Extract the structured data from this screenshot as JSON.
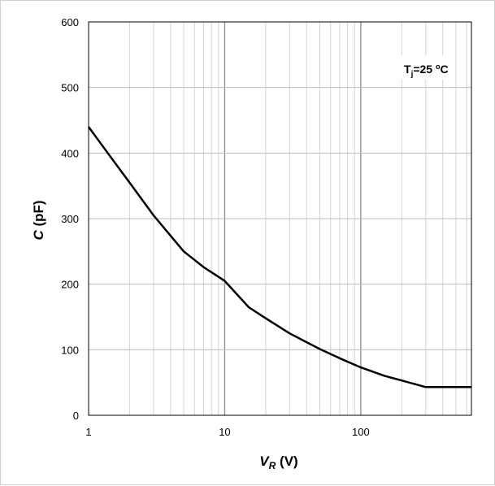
{
  "chart_data": {
    "type": "line",
    "xscale": "log",
    "xlim": [
      1,
      650
    ],
    "ylim": [
      0,
      600
    ],
    "x_ticks": [
      1,
      10,
      100
    ],
    "x_tick_labels": [
      "1",
      "10",
      "100"
    ],
    "y_ticks": [
      0,
      100,
      200,
      300,
      400,
      500,
      600
    ],
    "y_tick_labels": [
      "0",
      "100",
      "200",
      "300",
      "400",
      "500",
      "600"
    ],
    "xlabel_main": "V",
    "xlabel_sub": "R",
    "xlabel_unit": " (V)",
    "ylabel_main": "C",
    "ylabel_unit": " (pF)",
    "grid": true,
    "annotation": {
      "main": "T",
      "sub": "j",
      "value": "=25 ",
      "degree": "o",
      "unit": "C",
      "placement": "top-right"
    },
    "series": [
      {
        "color": "#000000",
        "x": [
          1,
          1.5,
          2,
          3,
          5,
          7,
          10,
          15,
          20,
          30,
          50,
          70,
          100,
          150,
          200,
          300,
          400,
          500,
          650
        ],
        "y": [
          440,
          390,
          355,
          305,
          250,
          226,
          205,
          165,
          148,
          125,
          101,
          87,
          73,
          60,
          53,
          43,
          43,
          43,
          43
        ]
      }
    ]
  }
}
